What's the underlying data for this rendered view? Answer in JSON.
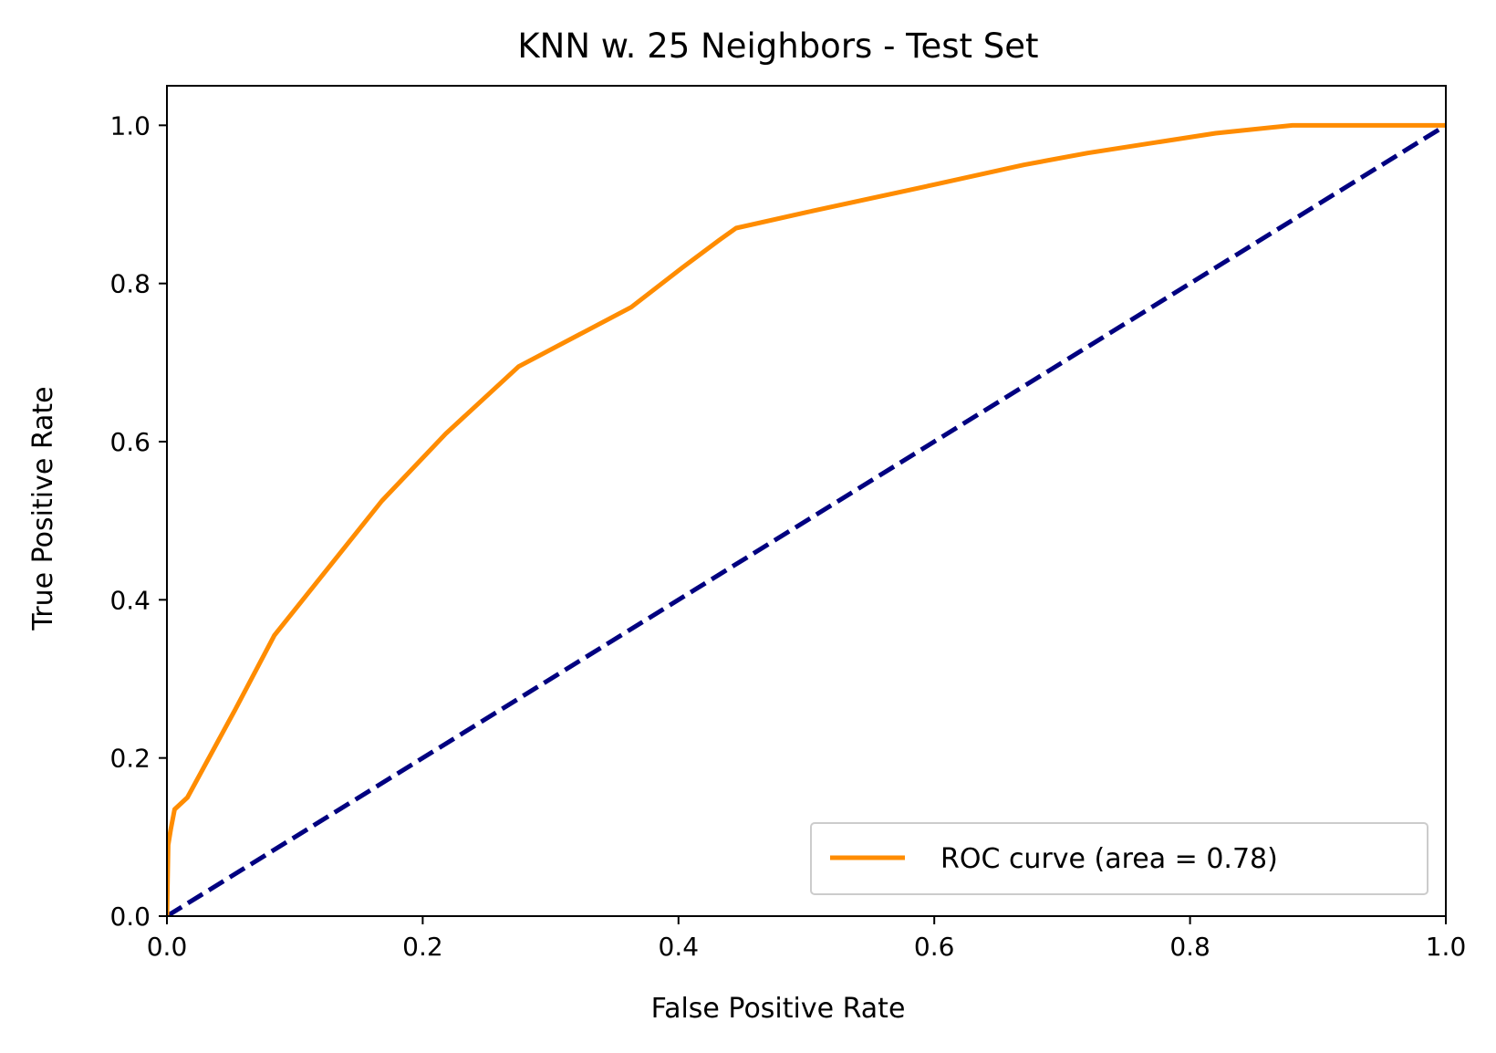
{
  "chart_data": {
    "type": "line",
    "title": "KNN w. 25 Neighbors - Test Set",
    "xlabel": "False Positive Rate",
    "ylabel": "True Positive Rate",
    "xlim": [
      0.0,
      1.0
    ],
    "ylim": [
      0.0,
      1.05
    ],
    "x_ticks": [
      0.0,
      0.2,
      0.4,
      0.6,
      0.8,
      1.0
    ],
    "x_tick_labels": [
      "0.0",
      "0.2",
      "0.4",
      "0.6",
      "0.8",
      "1.0"
    ],
    "y_ticks": [
      0.0,
      0.2,
      0.4,
      0.6,
      0.8,
      1.0
    ],
    "y_tick_labels": [
      "0.0",
      "0.2",
      "0.4",
      "0.6",
      "0.8",
      "1.0"
    ],
    "grid": false,
    "legend_position": "lower right",
    "series": [
      {
        "name": "ROC curve (area = 0.78)",
        "color": "#ff8c00",
        "style": "solid",
        "x": [
          0.0,
          0.001,
          0.003,
          0.006,
          0.016,
          0.053,
          0.084,
          0.126,
          0.168,
          0.218,
          0.275,
          0.363,
          0.403,
          0.432,
          0.445,
          0.5,
          0.6,
          0.67,
          0.72,
          0.82,
          0.88,
          0.9,
          1.0
        ],
        "y": [
          0.0,
          0.09,
          0.11,
          0.135,
          0.15,
          0.26,
          0.355,
          0.44,
          0.525,
          0.61,
          0.695,
          0.77,
          0.82,
          0.855,
          0.87,
          0.89,
          0.925,
          0.95,
          0.965,
          0.99,
          1.0,
          1.0,
          1.0
        ]
      },
      {
        "name": "",
        "color": "#000080",
        "style": "dashed",
        "x": [
          0.0,
          1.0
        ],
        "y": [
          0.0,
          1.0
        ]
      }
    ]
  }
}
